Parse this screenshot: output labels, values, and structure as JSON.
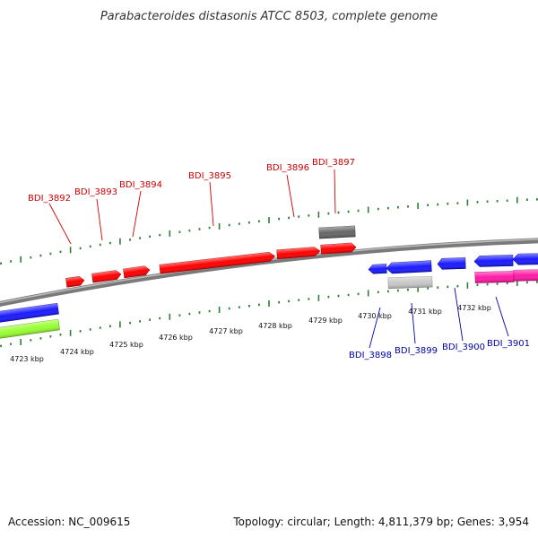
{
  "title": "Parabacteroides distasonis ATCC 8503, complete genome",
  "footer": {
    "accession": "Accession: NC_009615",
    "summary": "Topology: circular; Length: 4,811,379 bp; Genes: 3,954"
  },
  "colors": {
    "forward_label": "#cc0000",
    "reverse_label": "#0000aa",
    "backbone": "#8a8a8a",
    "tick": "#2e7d32",
    "red_gene": "#ff0000",
    "blue_gene": "#1a1aff",
    "magenta_gene": "#ff1aa6",
    "lime_gene": "#99ff33",
    "gray_gene": "#666666",
    "lightgray_gene": "#c8c8c8"
  },
  "scale_labels": [
    "4723 kbp",
    "4724 kbp",
    "4725 kbp",
    "4726 kbp",
    "4727 kbp",
    "4728 kbp",
    "4729 kbp",
    "4730 kbp",
    "4731 kbp",
    "4732 kbp"
  ],
  "gene_labels_top": [
    "BDI_3892",
    "BDI_3893",
    "BDI_3894",
    "BDI_3895",
    "BDI_3896",
    "BDI_3897"
  ],
  "gene_labels_bottom": [
    "BDI_3898",
    "BDI_3899",
    "BDI_3900",
    "BDI_3901"
  ]
}
